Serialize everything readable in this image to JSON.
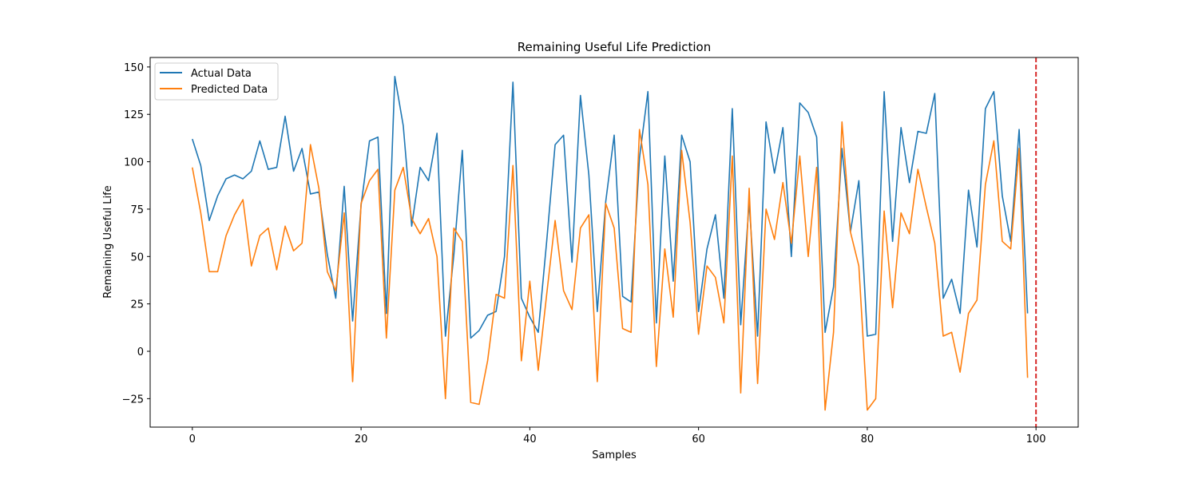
{
  "chart_data": {
    "type": "line",
    "title": "Remaining Useful Life Prediction",
    "xlabel": "Samples",
    "ylabel": "Remaining Useful Life",
    "xlim": [
      -5,
      105
    ],
    "ylim": [
      -40,
      155
    ],
    "xticks": [
      0,
      20,
      40,
      60,
      80,
      100
    ],
    "yticks": [
      -25,
      0,
      25,
      50,
      75,
      100,
      125,
      150
    ],
    "grid": false,
    "legend": "top-left",
    "vline": {
      "x": 100,
      "color": "#d62728",
      "style": "dashed"
    },
    "series": [
      {
        "name": "Actual Data",
        "color": "#1f77b4",
        "values": [
          112,
          98,
          69,
          82,
          91,
          93,
          91,
          95,
          111,
          96,
          97,
          124,
          95,
          107,
          83,
          84,
          51,
          28,
          87,
          16,
          77,
          111,
          113,
          20,
          145,
          119,
          66,
          97,
          90,
          115,
          8,
          51,
          106,
          7,
          11,
          19,
          21,
          50,
          142,
          28,
          18,
          10,
          58,
          109,
          114,
          47,
          135,
          93,
          21,
          79,
          114,
          29,
          26,
          102,
          137,
          15,
          103,
          37,
          114,
          100,
          21,
          54,
          72,
          28,
          128,
          14,
          79,
          8,
          121,
          94,
          118,
          50,
          131,
          126,
          113,
          10,
          34,
          107,
          63,
          90,
          8,
          9,
          137,
          58,
          118,
          89,
          116,
          115,
          136,
          28,
          38,
          20,
          85,
          55,
          128,
          137,
          82,
          58,
          117,
          20
        ]
      },
      {
        "name": "Predicted Data",
        "color": "#ff7f0e",
        "values": [
          97,
          73,
          42,
          42,
          61,
          72,
          80,
          45,
          61,
          65,
          43,
          66,
          53,
          57,
          109,
          86,
          42,
          32,
          73,
          -16,
          78,
          90,
          96,
          7,
          85,
          97,
          70,
          62,
          70,
          50,
          -25,
          65,
          58,
          -27,
          -28,
          -5,
          30,
          28,
          98,
          -5,
          37,
          -10,
          30,
          69,
          32,
          22,
          65,
          72,
          -16,
          78,
          65,
          12,
          10,
          117,
          88,
          -8,
          54,
          18,
          106,
          68,
          9,
          45,
          39,
          15,
          103,
          -22,
          86,
          -17,
          75,
          59,
          89,
          57,
          103,
          50,
          97,
          -31,
          10,
          121,
          63,
          45,
          -31,
          -25,
          74,
          23,
          73,
          62,
          96,
          76,
          57,
          8,
          10,
          -11,
          20,
          27,
          88,
          111,
          58,
          54,
          107,
          -14
        ]
      }
    ]
  }
}
